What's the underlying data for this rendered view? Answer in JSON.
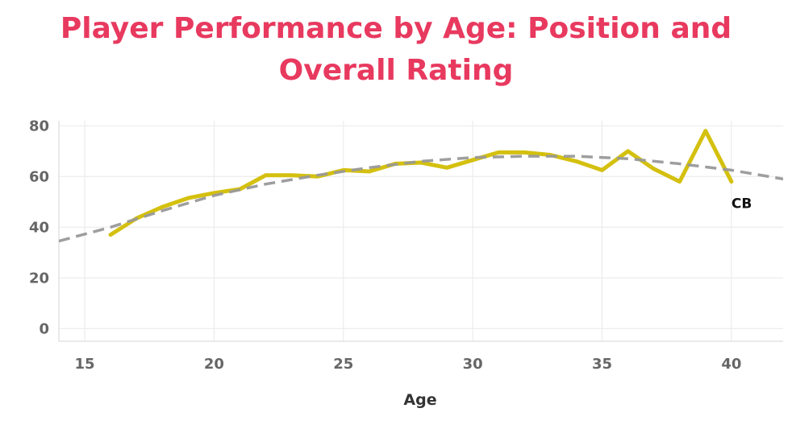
{
  "chart_data": {
    "type": "line",
    "title": "Player Performance by Age: Position and Overall Rating",
    "xlabel": "Age",
    "ylabel": "",
    "xlim": [
      14,
      42
    ],
    "ylim": [
      -5,
      82
    ],
    "x_ticks": [
      "15",
      "20",
      "25",
      "30",
      "35",
      "40"
    ],
    "y_ticks": [
      "0",
      "20",
      "40",
      "60",
      "80"
    ],
    "grid": true,
    "series": [
      {
        "name": "CB",
        "color": "#d4c00f",
        "end_label": "CB",
        "points": [
          {
            "x": 16,
            "y": 37
          },
          {
            "x": 17,
            "y": 43.5
          },
          {
            "x": 18,
            "y": 48
          },
          {
            "x": 19,
            "y": 51.5
          },
          {
            "x": 20,
            "y": 53.5
          },
          {
            "x": 21,
            "y": 55
          },
          {
            "x": 22,
            "y": 60.5
          },
          {
            "x": 23,
            "y": 60.5
          },
          {
            "x": 24,
            "y": 60
          },
          {
            "x": 25,
            "y": 62.5
          },
          {
            "x": 26,
            "y": 62
          },
          {
            "x": 27,
            "y": 65
          },
          {
            "x": 28,
            "y": 65.5
          },
          {
            "x": 29,
            "y": 63.5
          },
          {
            "x": 30,
            "y": 66.5
          },
          {
            "x": 31,
            "y": 69.5
          },
          {
            "x": 32,
            "y": 69.5
          },
          {
            "x": 33,
            "y": 68.5
          },
          {
            "x": 34,
            "y": 66
          },
          {
            "x": 35,
            "y": 62.5
          },
          {
            "x": 36,
            "y": 70
          },
          {
            "x": 37,
            "y": 63
          },
          {
            "x": 38,
            "y": 58
          },
          {
            "x": 39,
            "y": 78
          },
          {
            "x": 40,
            "y": 58
          }
        ]
      },
      {
        "name": "",
        "color": "#999999",
        "style": "dashed",
        "trend": true,
        "points": [
          {
            "x": 14,
            "y": 34.5
          },
          {
            "x": 16,
            "y": 40
          },
          {
            "x": 18,
            "y": 46.5
          },
          {
            "x": 20,
            "y": 52.5
          },
          {
            "x": 22,
            "y": 57
          },
          {
            "x": 24,
            "y": 60.5
          },
          {
            "x": 26,
            "y": 63.5
          },
          {
            "x": 28,
            "y": 66
          },
          {
            "x": 30,
            "y": 67.5
          },
          {
            "x": 32,
            "y": 68
          },
          {
            "x": 34,
            "y": 68
          },
          {
            "x": 36,
            "y": 67
          },
          {
            "x": 38,
            "y": 65
          },
          {
            "x": 40,
            "y": 62.5
          },
          {
            "x": 42,
            "y": 59
          }
        ]
      }
    ]
  }
}
